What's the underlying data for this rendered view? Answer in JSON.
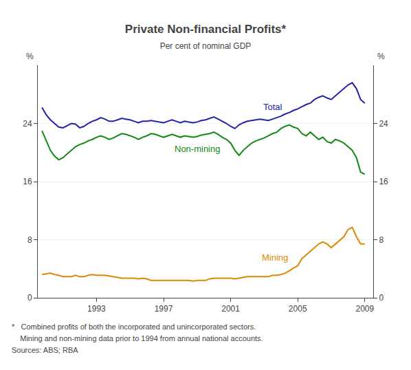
{
  "chart_data": {
    "type": "line",
    "title": "Private Non-financial Profits*",
    "subtitle": "Per cent of nominal GDP",
    "ylabel": "%",
    "y2label": "%",
    "footnotes": [
      "*   Combined profits of both the incorporated and unincorporated sectors.",
      "    Mining and non-mining data prior to 1994 from annual national accounts.",
      "Sources: ABS; RBA"
    ],
    "xlim": [
      1989.5,
      2009.5
    ],
    "xticks": [
      1993,
      1997,
      2001,
      2005,
      2009
    ],
    "ylim": [
      0,
      32
    ],
    "yticks": [
      0,
      8,
      16,
      24
    ],
    "y2lim": [
      0,
      32
    ],
    "y2ticks": [
      0,
      8,
      16,
      24
    ],
    "grid": true,
    "x": [
      1989.75,
      1990.0,
      1990.25,
      1990.5,
      1990.75,
      1991.0,
      1991.25,
      1991.5,
      1991.75,
      1992.0,
      1992.25,
      1992.5,
      1992.75,
      1993.0,
      1993.25,
      1993.5,
      1993.75,
      1994.0,
      1994.25,
      1994.5,
      1994.75,
      1995.0,
      1995.25,
      1995.5,
      1995.75,
      1996.0,
      1996.25,
      1996.5,
      1996.75,
      1997.0,
      1997.25,
      1997.5,
      1997.75,
      1998.0,
      1998.25,
      1998.5,
      1998.75,
      1999.0,
      1999.25,
      1999.5,
      1999.75,
      2000.0,
      2000.25,
      2000.5,
      2000.75,
      2001.0,
      2001.25,
      2001.5,
      2001.75,
      2002.0,
      2002.25,
      2002.5,
      2002.75,
      2003.0,
      2003.25,
      2003.5,
      2003.75,
      2004.0,
      2004.25,
      2004.5,
      2004.75,
      2005.0,
      2005.25,
      2005.5,
      2005.75,
      2006.0,
      2006.25,
      2006.5,
      2006.75,
      2007.0,
      2007.25,
      2007.5,
      2007.75,
      2008.0,
      2008.25,
      2008.5,
      2008.75,
      2009.0
    ],
    "series": [
      {
        "name": "Total",
        "color": "#2222aa",
        "values": [
          26.2,
          25.2,
          24.5,
          24.0,
          23.5,
          23.4,
          23.7,
          24.0,
          23.9,
          23.4,
          23.6,
          24.0,
          24.3,
          24.5,
          24.8,
          24.6,
          24.3,
          24.3,
          24.5,
          24.7,
          24.6,
          24.5,
          24.3,
          24.1,
          24.3,
          24.3,
          24.4,
          24.3,
          24.2,
          24.1,
          24.3,
          24.5,
          24.3,
          24.1,
          24.3,
          24.2,
          24.1,
          24.2,
          24.4,
          24.5,
          24.7,
          24.9,
          24.6,
          24.3,
          24.0,
          23.6,
          23.3,
          23.8,
          24.1,
          24.3,
          24.4,
          24.5,
          24.6,
          24.5,
          24.4,
          24.6,
          24.8,
          25.0,
          25.3,
          25.5,
          25.8,
          26.0,
          26.3,
          26.6,
          26.8,
          27.3,
          27.6,
          27.8,
          27.5,
          27.3,
          27.8,
          28.3,
          28.8,
          29.3,
          29.6,
          28.8,
          27.3,
          26.8
        ]
      },
      {
        "name": "Non-mining",
        "color": "#118811",
        "values": [
          23.0,
          21.6,
          20.3,
          19.5,
          19.0,
          19.3,
          19.8,
          20.3,
          20.8,
          21.1,
          21.3,
          21.6,
          21.8,
          22.1,
          22.3,
          22.1,
          21.8,
          22.0,
          22.3,
          22.6,
          22.5,
          22.3,
          22.1,
          21.8,
          22.1,
          22.3,
          22.6,
          22.5,
          22.3,
          22.1,
          22.3,
          22.5,
          22.3,
          22.1,
          22.3,
          22.2,
          22.1,
          22.2,
          22.4,
          22.5,
          22.6,
          22.8,
          22.5,
          22.1,
          21.8,
          21.3,
          20.3,
          19.6,
          20.3,
          20.8,
          21.3,
          21.6,
          21.8,
          22.0,
          22.3,
          22.6,
          22.8,
          23.3,
          23.6,
          23.8,
          23.5,
          23.3,
          22.6,
          22.3,
          22.8,
          22.3,
          21.8,
          22.1,
          21.5,
          21.3,
          21.8,
          21.6,
          21.3,
          20.8,
          20.3,
          19.3,
          17.3,
          17.0
        ]
      },
      {
        "name": "Mining",
        "color": "#dd8800",
        "values": [
          3.2,
          3.3,
          3.4,
          3.2,
          3.1,
          2.9,
          2.9,
          2.9,
          3.1,
          2.9,
          2.9,
          3.1,
          3.2,
          3.1,
          3.1,
          3.1,
          3.0,
          2.9,
          2.8,
          2.7,
          2.7,
          2.7,
          2.7,
          2.6,
          2.7,
          2.6,
          2.4,
          2.4,
          2.4,
          2.4,
          2.4,
          2.4,
          2.4,
          2.4,
          2.4,
          2.4,
          2.3,
          2.4,
          2.4,
          2.4,
          2.6,
          2.7,
          2.7,
          2.7,
          2.7,
          2.7,
          2.6,
          2.7,
          2.8,
          2.9,
          2.9,
          2.9,
          2.9,
          2.9,
          2.9,
          3.1,
          3.1,
          3.2,
          3.4,
          3.7,
          4.1,
          4.4,
          5.4,
          5.9,
          6.4,
          6.9,
          7.4,
          7.7,
          7.4,
          6.9,
          7.4,
          7.9,
          8.4,
          9.4,
          9.7,
          8.4,
          7.4,
          7.4
        ]
      }
    ]
  }
}
